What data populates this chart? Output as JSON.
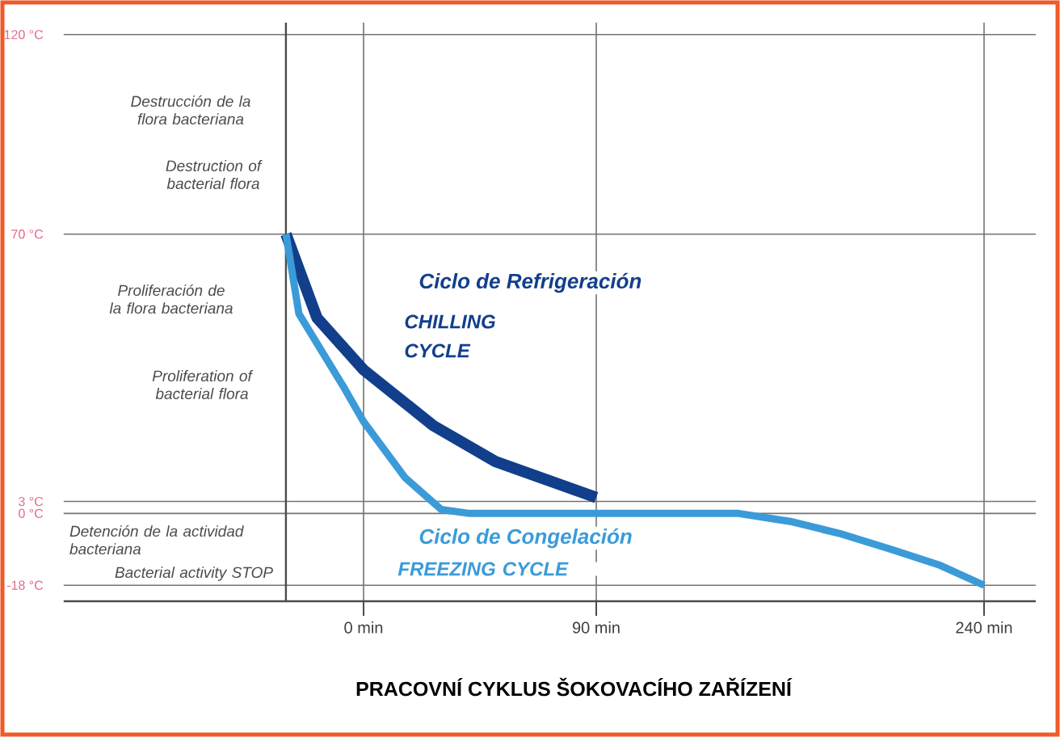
{
  "chart_data": {
    "type": "line",
    "title": "PRACOVNÍ CYKLUS ŠOKOVACÍHO ZAŘÍZENÍ",
    "xlim": [
      -116,
      260
    ],
    "ylim": [
      -22,
      123
    ],
    "ref_lines": [
      {
        "axis": "x",
        "value": -30
      }
    ],
    "xticks": [
      {
        "value": 0,
        "label": "0 min"
      },
      {
        "value": 90,
        "label": "90 min"
      },
      {
        "value": 240,
        "label": "240 min"
      }
    ],
    "yticks": [
      {
        "value": -18,
        "label": "-18 °C"
      },
      {
        "value": 0,
        "label": "0 °C"
      },
      {
        "value": 3,
        "label": "3 °C"
      },
      {
        "value": 70,
        "label": "70 °C"
      },
      {
        "value": 120,
        "label": "120 °C"
      }
    ],
    "grid": true,
    "legend": false,
    "marker": "none",
    "line_style": "solid",
    "series": [
      {
        "name": "Ciclo de Refrigeración",
        "color": "#123f8c",
        "x": [
          -30,
          -18,
          0,
          27,
          51,
          90
        ],
        "values": [
          70,
          49,
          36,
          22,
          13,
          4
        ]
      },
      {
        "name": "Ciclo de Congelación",
        "color": "#3b9bd8",
        "x": [
          -30,
          -25,
          -8,
          0,
          16,
          30,
          41,
          145,
          165,
          184,
          204,
          223,
          240
        ],
        "values": [
          70,
          50,
          32,
          23,
          9,
          1,
          0,
          0,
          -2,
          -5,
          -9,
          -13,
          -18
        ]
      }
    ],
    "annotations": [
      "Destrucción de la flora bacteriana",
      "Destruction of bacterial flora",
      "Proliferación de la flora bacteriana",
      "Proliferation of bacterial flora",
      "Detención de la actividad bacteriana",
      "Bacterial activity STOP",
      "CHILLING CYCLE",
      "FREEZING CYCLE"
    ]
  }
}
